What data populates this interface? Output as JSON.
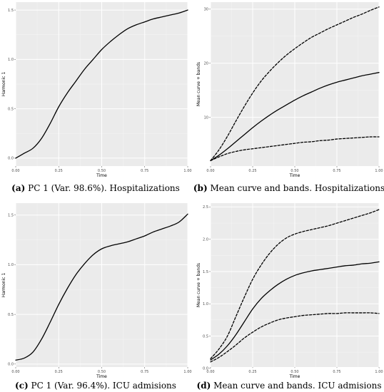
{
  "theme": {
    "panel_background": "#ebebeb",
    "grid_major": "#ffffff",
    "line_color": "#000000"
  },
  "chart_data": [
    {
      "id": "a",
      "type": "line",
      "caption_letter": "(a)",
      "caption_text": "PC 1 (Var. 98.6%). Hospitalizations",
      "xlabel": "Time",
      "ylabel": "Harmonic 1",
      "xlim": [
        0,
        1
      ],
      "ylim": [
        -0.08,
        1.58
      ],
      "xticks": [
        "0.00",
        "0.25",
        "0.50",
        "0.75",
        "1.00"
      ],
      "yticks": [
        "0.0",
        "0.5",
        "1.0",
        "1.5"
      ],
      "series": [
        {
          "style": "solid",
          "x": [
            0,
            0.05,
            0.1,
            0.15,
            0.2,
            0.25,
            0.3,
            0.35,
            0.4,
            0.45,
            0.5,
            0.55,
            0.6,
            0.65,
            0.7,
            0.75,
            0.8,
            0.85,
            0.9,
            0.95,
            1.0
          ],
          "y": [
            0.0,
            0.05,
            0.1,
            0.2,
            0.35,
            0.52,
            0.66,
            0.78,
            0.9,
            1.0,
            1.1,
            1.18,
            1.25,
            1.31,
            1.35,
            1.38,
            1.41,
            1.43,
            1.45,
            1.47,
            1.5
          ]
        }
      ]
    },
    {
      "id": "b",
      "type": "line",
      "caption_letter": "(b)",
      "caption_text": "Mean curve and bands. Hospitalizations",
      "xlabel": "Time",
      "ylabel": "Mean curve + bands",
      "xlim": [
        0,
        1
      ],
      "ylim": [
        1,
        31.3
      ],
      "xticks": [
        "0.00",
        "0.25",
        "0.50",
        "0.75",
        "1.00"
      ],
      "yticks": [
        "10",
        "20",
        "30"
      ],
      "series": [
        {
          "style": "dashed",
          "x": [
            0,
            0.05,
            0.1,
            0.15,
            0.2,
            0.25,
            0.3,
            0.35,
            0.4,
            0.45,
            0.5,
            0.55,
            0.6,
            0.65,
            0.7,
            0.75,
            0.8,
            0.85,
            0.9,
            0.95,
            1.0
          ],
          "y": [
            2.0,
            4.0,
            6.5,
            9.3,
            12.0,
            14.5,
            16.7,
            18.5,
            20.1,
            21.5,
            22.7,
            23.8,
            24.8,
            25.6,
            26.4,
            27.1,
            27.8,
            28.5,
            29.1,
            29.8,
            30.4
          ]
        },
        {
          "style": "solid",
          "x": [
            0,
            0.05,
            0.1,
            0.15,
            0.2,
            0.25,
            0.3,
            0.35,
            0.4,
            0.45,
            0.5,
            0.55,
            0.6,
            0.65,
            0.7,
            0.75,
            0.8,
            0.85,
            0.9,
            0.95,
            1.0
          ],
          "y": [
            2.0,
            3.0,
            4.2,
            5.5,
            6.8,
            8.1,
            9.3,
            10.4,
            11.4,
            12.3,
            13.2,
            14.0,
            14.7,
            15.4,
            16.0,
            16.5,
            16.9,
            17.3,
            17.7,
            18.0,
            18.3
          ]
        },
        {
          "style": "dashed",
          "x": [
            0,
            0.05,
            0.1,
            0.15,
            0.2,
            0.25,
            0.3,
            0.35,
            0.4,
            0.45,
            0.5,
            0.55,
            0.6,
            0.65,
            0.7,
            0.75,
            0.8,
            0.85,
            0.9,
            0.95,
            1.0
          ],
          "y": [
            2.0,
            2.7,
            3.3,
            3.7,
            4.0,
            4.2,
            4.4,
            4.6,
            4.8,
            5.0,
            5.2,
            5.4,
            5.5,
            5.7,
            5.8,
            6.0,
            6.1,
            6.2,
            6.3,
            6.4,
            6.4
          ]
        }
      ]
    },
    {
      "id": "c",
      "type": "line",
      "caption_letter": "(c)",
      "caption_text": "PC 1 (Var. 96.4%). ICU admisions",
      "xlabel": "Time",
      "ylabel": "Harmonic 1",
      "xlim": [
        0,
        1
      ],
      "ylim": [
        -0.03,
        1.62
      ],
      "xticks": [
        "0.00",
        "0.25",
        "0.50",
        "0.75",
        "1.00"
      ],
      "yticks": [
        "0.0",
        "0.5",
        "1.0",
        "1.5"
      ],
      "series": [
        {
          "style": "solid",
          "x": [
            0,
            0.05,
            0.1,
            0.15,
            0.2,
            0.25,
            0.3,
            0.35,
            0.4,
            0.45,
            0.5,
            0.55,
            0.6,
            0.65,
            0.7,
            0.75,
            0.8,
            0.85,
            0.9,
            0.95,
            1.0
          ],
          "y": [
            0.04,
            0.06,
            0.12,
            0.25,
            0.42,
            0.6,
            0.76,
            0.9,
            1.01,
            1.1,
            1.16,
            1.19,
            1.21,
            1.23,
            1.26,
            1.29,
            1.33,
            1.36,
            1.39,
            1.43,
            1.51
          ]
        }
      ]
    },
    {
      "id": "d",
      "type": "line",
      "caption_letter": "(d)",
      "caption_text": "Mean curve and bands. ICU admisions",
      "xlabel": "Time",
      "ylabel": "Mean curve + bands",
      "xlim": [
        0,
        1
      ],
      "ylim": [
        0.02,
        2.56
      ],
      "xticks": [
        "0.00",
        "0.25",
        "0.50",
        "0.75",
        "1.00"
      ],
      "yticks": [
        "0.0",
        "0.5",
        "1.0",
        "1.5",
        "2.0",
        "2.5"
      ],
      "series": [
        {
          "style": "dashed",
          "x": [
            0,
            0.05,
            0.1,
            0.15,
            0.2,
            0.25,
            0.3,
            0.35,
            0.4,
            0.45,
            0.5,
            0.55,
            0.6,
            0.65,
            0.7,
            0.75,
            0.8,
            0.85,
            0.9,
            0.95,
            1.0
          ],
          "y": [
            0.15,
            0.3,
            0.5,
            0.8,
            1.1,
            1.38,
            1.6,
            1.78,
            1.92,
            2.02,
            2.08,
            2.12,
            2.15,
            2.18,
            2.21,
            2.25,
            2.29,
            2.33,
            2.37,
            2.41,
            2.46
          ]
        },
        {
          "style": "solid",
          "x": [
            0,
            0.05,
            0.1,
            0.15,
            0.2,
            0.25,
            0.3,
            0.35,
            0.4,
            0.45,
            0.5,
            0.55,
            0.6,
            0.65,
            0.7,
            0.75,
            0.8,
            0.85,
            0.9,
            0.95,
            1.0
          ],
          "y": [
            0.13,
            0.22,
            0.35,
            0.52,
            0.72,
            0.92,
            1.08,
            1.2,
            1.3,
            1.38,
            1.44,
            1.48,
            1.51,
            1.53,
            1.55,
            1.57,
            1.59,
            1.6,
            1.62,
            1.63,
            1.65
          ]
        },
        {
          "style": "dashed",
          "x": [
            0,
            0.05,
            0.1,
            0.15,
            0.2,
            0.25,
            0.3,
            0.35,
            0.4,
            0.45,
            0.5,
            0.55,
            0.6,
            0.65,
            0.7,
            0.75,
            0.8,
            0.85,
            0.9,
            0.95,
            1.0
          ],
          "y": [
            0.1,
            0.17,
            0.26,
            0.36,
            0.47,
            0.56,
            0.64,
            0.7,
            0.75,
            0.78,
            0.8,
            0.82,
            0.83,
            0.84,
            0.85,
            0.85,
            0.86,
            0.86,
            0.86,
            0.86,
            0.85
          ]
        }
      ]
    }
  ]
}
